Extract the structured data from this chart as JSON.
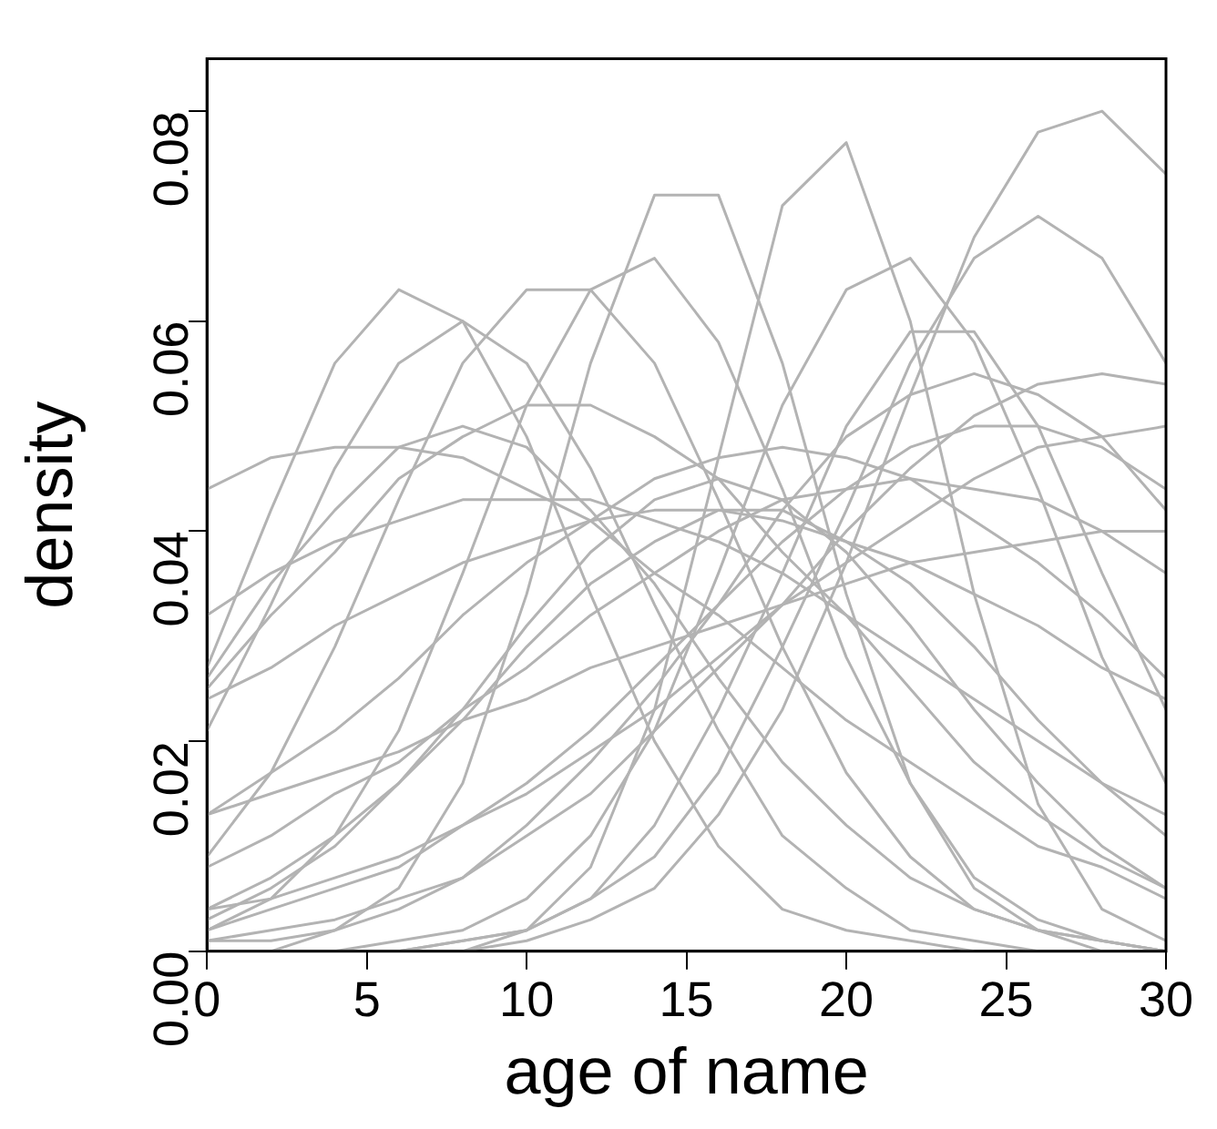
{
  "chart_data": {
    "type": "line",
    "xlabel": "age of name",
    "ylabel": "density",
    "x": [
      0,
      2,
      4,
      6,
      8,
      10,
      12,
      14,
      16,
      18,
      20,
      22,
      24,
      26,
      28,
      30
    ],
    "xlim": [
      0,
      30
    ],
    "xticks": [
      0,
      5,
      10,
      15,
      20,
      25,
      30
    ],
    "ylim": [
      0,
      0.085
    ],
    "yticks": [
      {
        "value": 0,
        "label": "0.00"
      },
      {
        "value": 0.02,
        "label": "0.02"
      },
      {
        "value": 0.04,
        "label": "0.04"
      },
      {
        "value": 0.06,
        "label": "0.06"
      },
      {
        "value": 0.08,
        "label": "0.08"
      }
    ],
    "grid": false,
    "legend": false,
    "marker": "none",
    "line_style": "solid",
    "series": [
      {
        "color": "#b3b3b3",
        "values": [
          0.027,
          0.042,
          0.056,
          0.063,
          0.06,
          0.049,
          0.034,
          0.02,
          0.01,
          0.004,
          0.002,
          0.001,
          0.0,
          0.0,
          0.0,
          0.0
        ]
      },
      {
        "color": "#b3b3b3",
        "values": [
          0.021,
          0.033,
          0.046,
          0.056,
          0.06,
          0.056,
          0.046,
          0.033,
          0.021,
          0.011,
          0.006,
          0.002,
          0.001,
          0.0,
          0.0,
          0.0
        ]
      },
      {
        "color": "#b3b3b3",
        "values": [
          0.0,
          0.0,
          0.002,
          0.006,
          0.016,
          0.034,
          0.056,
          0.072,
          0.072,
          0.056,
          0.034,
          0.016,
          0.006,
          0.002,
          0.0,
          0.0
        ]
      },
      {
        "color": "#b3b3b3",
        "values": [
          0.0,
          0.0,
          0.0,
          0.0,
          0.0,
          0.002,
          0.008,
          0.023,
          0.047,
          0.071,
          0.077,
          0.06,
          0.034,
          0.014,
          0.004,
          0.001
        ]
      },
      {
        "color": "#b3b3b3",
        "values": [
          0.0,
          0.0,
          0.0,
          0.0,
          0.0,
          0.001,
          0.003,
          0.006,
          0.013,
          0.023,
          0.037,
          0.053,
          0.068,
          0.078,
          0.08,
          0.074
        ]
      },
      {
        "color": "#b3b3b3",
        "values": [
          0.002,
          0.005,
          0.011,
          0.021,
          0.036,
          0.052,
          0.063,
          0.066,
          0.058,
          0.044,
          0.028,
          0.016,
          0.007,
          0.003,
          0.001,
          0.0
        ]
      },
      {
        "color": "#b3b3b3",
        "values": [
          0.0,
          0.0,
          0.0,
          0.001,
          0.002,
          0.005,
          0.011,
          0.021,
          0.036,
          0.052,
          0.063,
          0.066,
          0.058,
          0.044,
          0.028,
          0.016
        ]
      },
      {
        "color": "#b3b3b3",
        "values": [
          0.0,
          0.0,
          0.0,
          0.0,
          0.001,
          0.002,
          0.005,
          0.009,
          0.017,
          0.029,
          0.042,
          0.056,
          0.066,
          0.07,
          0.066,
          0.056
        ]
      },
      {
        "color": "#b3b3b3",
        "values": [
          0.009,
          0.017,
          0.029,
          0.043,
          0.056,
          0.063,
          0.063,
          0.056,
          0.043,
          0.029,
          0.017,
          0.009,
          0.004,
          0.002,
          0.001,
          0.0
        ]
      },
      {
        "color": "#b3b3b3",
        "values": [
          0.002,
          0.004,
          0.006,
          0.008,
          0.012,
          0.016,
          0.021,
          0.027,
          0.033,
          0.039,
          0.044,
          0.048,
          0.05,
          0.05,
          0.048,
          0.044
        ]
      },
      {
        "color": "#b3b3b3",
        "values": [
          0.008,
          0.011,
          0.015,
          0.018,
          0.023,
          0.027,
          0.032,
          0.036,
          0.04,
          0.043,
          0.044,
          0.045,
          0.044,
          0.043,
          0.04,
          0.036
        ]
      },
      {
        "color": "#b3b3b3",
        "values": [
          0.013,
          0.017,
          0.021,
          0.026,
          0.032,
          0.037,
          0.041,
          0.045,
          0.047,
          0.048,
          0.047,
          0.045,
          0.041,
          0.037,
          0.032,
          0.026
        ]
      },
      {
        "color": "#b3b3b3",
        "values": [
          0.024,
          0.027,
          0.031,
          0.034,
          0.037,
          0.039,
          0.041,
          0.042,
          0.042,
          0.041,
          0.039,
          0.037,
          0.034,
          0.031,
          0.027,
          0.024
        ]
      },
      {
        "color": "#b3b3b3",
        "values": [
          0.032,
          0.036,
          0.039,
          0.041,
          0.043,
          0.043,
          0.043,
          0.041,
          0.039,
          0.036,
          0.032,
          0.028,
          0.024,
          0.02,
          0.016,
          0.013
        ]
      },
      {
        "color": "#b3b3b3",
        "values": [
          0.004,
          0.005,
          0.007,
          0.009,
          0.012,
          0.015,
          0.019,
          0.023,
          0.028,
          0.033,
          0.037,
          0.041,
          0.045,
          0.048,
          0.049,
          0.05
        ]
      },
      {
        "color": "#b3b3b3",
        "values": [
          0.003,
          0.006,
          0.01,
          0.016,
          0.023,
          0.031,
          0.038,
          0.043,
          0.045,
          0.043,
          0.038,
          0.031,
          0.023,
          0.016,
          0.01,
          0.006
        ]
      },
      {
        "color": "#b3b3b3",
        "values": [
          0.001,
          0.001,
          0.002,
          0.004,
          0.007,
          0.012,
          0.018,
          0.025,
          0.033,
          0.042,
          0.049,
          0.053,
          0.055,
          0.053,
          0.049,
          0.042
        ]
      },
      {
        "color": "#b3b3b3",
        "values": [
          0.025,
          0.032,
          0.038,
          0.045,
          0.049,
          0.052,
          0.052,
          0.049,
          0.045,
          0.038,
          0.032,
          0.025,
          0.018,
          0.013,
          0.009,
          0.006
        ]
      },
      {
        "color": "#b3b3b3",
        "values": [
          0.013,
          0.015,
          0.017,
          0.019,
          0.022,
          0.024,
          0.027,
          0.029,
          0.031,
          0.033,
          0.035,
          0.037,
          0.038,
          0.039,
          0.04,
          0.04
        ]
      },
      {
        "color": "#b3b3b3",
        "values": [
          0.044,
          0.047,
          0.048,
          0.048,
          0.047,
          0.044,
          0.041,
          0.036,
          0.032,
          0.027,
          0.022,
          0.018,
          0.014,
          0.01,
          0.008,
          0.005
        ]
      },
      {
        "color": "#b3b3b3",
        "values": [
          0.001,
          0.002,
          0.003,
          0.005,
          0.007,
          0.011,
          0.015,
          0.021,
          0.027,
          0.033,
          0.04,
          0.046,
          0.051,
          0.054,
          0.055,
          0.054
        ]
      },
      {
        "color": "#b3b3b3",
        "values": [
          0.004,
          0.007,
          0.011,
          0.016,
          0.022,
          0.029,
          0.035,
          0.039,
          0.042,
          0.042,
          0.039,
          0.035,
          0.029,
          0.022,
          0.016,
          0.011
        ]
      },
      {
        "color": "#b3b3b3",
        "values": [
          0.0,
          0.0,
          0.0,
          0.0,
          0.001,
          0.002,
          0.005,
          0.012,
          0.023,
          0.036,
          0.05,
          0.059,
          0.059,
          0.05,
          0.036,
          0.023
        ]
      },
      {
        "color": "#b3b3b3",
        "values": [
          0.026,
          0.035,
          0.042,
          0.048,
          0.05,
          0.048,
          0.042,
          0.035,
          0.026,
          0.018,
          0.012,
          0.007,
          0.004,
          0.002,
          0.001,
          0.0
        ]
      }
    ]
  }
}
